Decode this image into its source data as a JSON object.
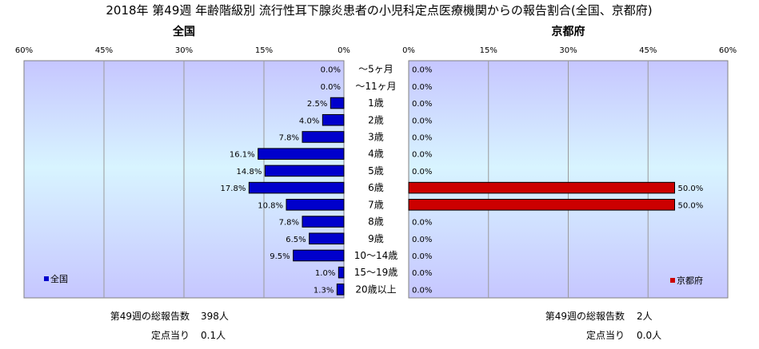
{
  "chart_data": {
    "type": "bar",
    "title": "2018年 第49週 年齢階級別 流行性耳下腺炎患者の小児科定点医療機関からの報告割合(全国、京都府)",
    "categories": [
      "～5ヶ月",
      "～11ヶ月",
      "1歳",
      "2歳",
      "3歳",
      "4歳",
      "5歳",
      "6歳",
      "7歳",
      "8歳",
      "9歳",
      "10～14歳",
      "15～19歳",
      "20歳以上"
    ],
    "xlim": [
      0,
      60
    ],
    "xticks": [
      "60%",
      "45%",
      "30%",
      "15%",
      "0%"
    ],
    "xticks_right": [
      "0%",
      "15%",
      "30%",
      "45%",
      "60%"
    ],
    "grid": true,
    "panels": [
      {
        "title": "全国",
        "series": [
          {
            "name": "全国",
            "color": "#0000cc",
            "values": [
              0.0,
              0.0,
              2.5,
              4.0,
              7.8,
              16.1,
              14.8,
              17.8,
              10.8,
              7.8,
              6.5,
              9.5,
              1.0,
              1.3
            ],
            "labels": [
              "0.0%",
              "0.0%",
              "2.5%",
              "4.0%",
              "7.8%",
              "16.1%",
              "14.8%",
              "17.8%",
              "10.8%",
              "7.8%",
              "6.5%",
              "9.5%",
              "1.0%",
              "1.3%"
            ]
          }
        ],
        "legend_position": "bottom-left",
        "footer": [
          {
            "label": "第49週の総報告数",
            "value": "398人"
          },
          {
            "label": "定点当り",
            "value": "0.1人"
          }
        ]
      },
      {
        "title": "京都府",
        "series": [
          {
            "name": "京都府",
            "color": "#cc0000",
            "values": [
              0.0,
              0.0,
              0.0,
              0.0,
              0.0,
              0.0,
              0.0,
              50.0,
              50.0,
              0.0,
              0.0,
              0.0,
              0.0,
              0.0
            ],
            "labels": [
              "0.0%",
              "0.0%",
              "0.0%",
              "0.0%",
              "0.0%",
              "0.0%",
              "0.0%",
              "50.0%",
              "50.0%",
              "0.0%",
              "0.0%",
              "0.0%",
              "0.0%",
              "0.0%"
            ]
          }
        ],
        "legend_position": "bottom-right",
        "footer": [
          {
            "label": "第49週の総報告数",
            "value": "2人"
          },
          {
            "label": "定点当り",
            "value": "0.0人"
          }
        ]
      }
    ]
  }
}
